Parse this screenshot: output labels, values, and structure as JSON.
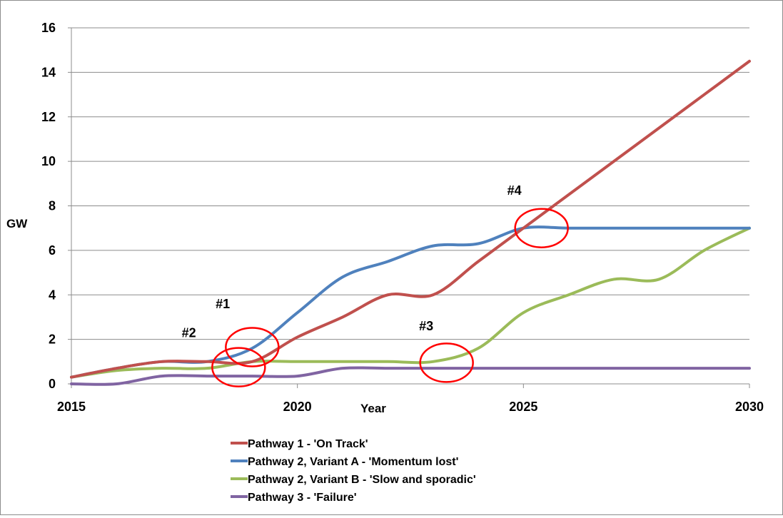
{
  "chart_data": {
    "type": "line",
    "title": "",
    "xlabel": "Year",
    "ylabel": "GW",
    "xlim": [
      2015,
      2030
    ],
    "ylim": [
      0,
      16
    ],
    "x_ticks": [
      2015,
      2020,
      2025,
      2030
    ],
    "y_ticks": [
      0,
      2,
      4,
      6,
      8,
      10,
      12,
      14,
      16
    ],
    "grid": "horizontal",
    "legend_position": "bottom",
    "series": [
      {
        "name": "Pathway 1 - 'On Track'",
        "color": "#c0504d",
        "points": [
          [
            2015,
            0.3
          ],
          [
            2016,
            0.7
          ],
          [
            2017,
            1.0
          ],
          [
            2018,
            1.0
          ],
          [
            2019,
            1.0
          ],
          [
            2020,
            2.1
          ],
          [
            2021,
            3.0
          ],
          [
            2022,
            4.0
          ],
          [
            2023,
            4.0
          ],
          [
            2024,
            5.5
          ],
          [
            2025,
            7.0
          ],
          [
            2026,
            8.5
          ],
          [
            2027,
            10.0
          ],
          [
            2028,
            11.5
          ],
          [
            2029,
            13.0
          ],
          [
            2030,
            14.5
          ]
        ]
      },
      {
        "name": "Pathway 2, Variant A - 'Momentum lost'",
        "color": "#4f81bd",
        "points": [
          [
            2015,
            0.3
          ],
          [
            2016,
            0.7
          ],
          [
            2017,
            1.0
          ],
          [
            2018,
            1.0
          ],
          [
            2019,
            1.6
          ],
          [
            2020,
            3.2
          ],
          [
            2021,
            4.8
          ],
          [
            2022,
            5.5
          ],
          [
            2023,
            6.2
          ],
          [
            2024,
            6.3
          ],
          [
            2025,
            7.0
          ],
          [
            2026,
            7.0
          ],
          [
            2027,
            7.0
          ],
          [
            2028,
            7.0
          ],
          [
            2029,
            7.0
          ],
          [
            2030,
            7.0
          ]
        ]
      },
      {
        "name": "Pathway 2, Variant B - 'Slow and sporadic'",
        "color": "#9bbb59",
        "points": [
          [
            2015,
            0.3
          ],
          [
            2016,
            0.6
          ],
          [
            2017,
            0.7
          ],
          [
            2018,
            0.7
          ],
          [
            2019,
            1.0
          ],
          [
            2020,
            1.0
          ],
          [
            2021,
            1.0
          ],
          [
            2022,
            1.0
          ],
          [
            2023,
            1.0
          ],
          [
            2024,
            1.6
          ],
          [
            2025,
            3.2
          ],
          [
            2026,
            4.0
          ],
          [
            2027,
            4.7
          ],
          [
            2028,
            4.7
          ],
          [
            2029,
            6.0
          ],
          [
            2030,
            7.0
          ]
        ]
      },
      {
        "name": "Pathway 3 - 'Failure'",
        "color": "#8064a2",
        "points": [
          [
            2015,
            0.0
          ],
          [
            2016,
            0.0
          ],
          [
            2017,
            0.35
          ],
          [
            2018,
            0.35
          ],
          [
            2019,
            0.35
          ],
          [
            2020,
            0.35
          ],
          [
            2021,
            0.7
          ],
          [
            2022,
            0.7
          ],
          [
            2023,
            0.7
          ],
          [
            2024,
            0.7
          ],
          [
            2025,
            0.7
          ],
          [
            2026,
            0.7
          ],
          [
            2027,
            0.7
          ],
          [
            2028,
            0.7
          ],
          [
            2029,
            0.7
          ],
          [
            2030,
            0.7
          ]
        ]
      }
    ],
    "annotations": [
      {
        "label": "#1",
        "x": 2019.0,
        "y": 1.65,
        "label_x": 2018.35,
        "label_y": 3.4
      },
      {
        "label": "#2",
        "x": 2018.7,
        "y": 0.75,
        "label_x": 2017.6,
        "label_y": 2.1
      },
      {
        "label": "#3",
        "x": 2023.3,
        "y": 0.95,
        "label_x": 2022.85,
        "label_y": 2.4
      },
      {
        "label": "#4",
        "x": 2025.4,
        "y": 7.0,
        "label_x": 2024.8,
        "label_y": 8.5
      }
    ],
    "annotation_color": "#ff0000"
  }
}
